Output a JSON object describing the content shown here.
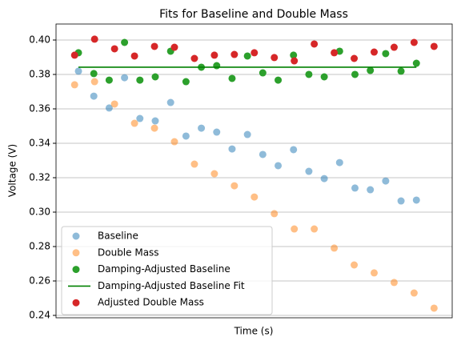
{
  "chart_data": {
    "type": "scatter",
    "title": "Fits for Baseline and Double Mass",
    "xlabel": "Time (s)",
    "ylabel": "Voltage (V)",
    "xlim": [
      -1.46,
      24.33
    ],
    "ylim": [
      0.2386,
      0.4093
    ],
    "yticks": [
      0.24,
      0.26,
      0.28,
      {
        "value": 0.3,
        "label": "0.30"
      },
      0.32,
      0.34,
      0.36,
      0.38,
      {
        "value": 0.4,
        "label": "0.40"
      }
    ],
    "grid": "y",
    "legend": "lower left",
    "series": [
      {
        "name": "Baseline",
        "kind": "scatter",
        "color": "#1f77b4",
        "alpha": 0.5,
        "x": [
          0,
          1,
          2,
          3,
          4,
          5,
          6,
          7,
          8,
          9,
          10,
          11,
          12,
          13,
          14,
          15,
          16,
          17,
          18,
          19,
          20,
          21,
          22
        ],
        "values": [
          0.3819,
          0.3674,
          0.3605,
          0.3781,
          0.3544,
          0.353,
          0.3637,
          0.3442,
          0.3488,
          0.3465,
          0.3367,
          0.3451,
          0.3335,
          0.327,
          0.3363,
          0.3237,
          0.3195,
          0.3288,
          0.314,
          0.313,
          0.3181,
          0.3065,
          0.307
        ]
      },
      {
        "name": "Double Mass",
        "kind": "scatter",
        "color": "#ff7f0e",
        "alpha": 0.5,
        "x": [
          -0.25,
          1.05,
          2.35,
          3.65,
          4.95,
          6.25,
          7.55,
          8.85,
          10.15,
          11.45,
          12.75,
          14.05,
          15.35,
          16.65,
          17.95,
          19.25,
          20.55,
          21.85,
          23.15
        ],
        "values": [
          0.374,
          0.3758,
          0.3628,
          0.3516,
          0.3488,
          0.3409,
          0.3279,
          0.3223,
          0.3153,
          0.3088,
          0.2991,
          0.2902,
          0.2902,
          0.2791,
          0.2693,
          0.2647,
          0.2591,
          0.253,
          0.2442
        ]
      },
      {
        "name": "Damping-Adjusted Baseline",
        "kind": "scatter",
        "color": "#2ca02c",
        "alpha": 1,
        "x": [
          0,
          1,
          2,
          3,
          4,
          5,
          6,
          7,
          8,
          9,
          10,
          11,
          12,
          13,
          14,
          15,
          16,
          17,
          18,
          19,
          20,
          21,
          22
        ],
        "values": [
          0.3926,
          0.3805,
          0.3767,
          0.3986,
          0.3767,
          0.3786,
          0.3935,
          0.3758,
          0.3842,
          0.3851,
          0.3777,
          0.3907,
          0.3809,
          0.3767,
          0.3912,
          0.38,
          0.3786,
          0.3935,
          0.38,
          0.3823,
          0.3921,
          0.3819,
          0.3865
        ]
      },
      {
        "name": "Damping-Adjusted Baseline Fit",
        "kind": "line",
        "color": "#008000",
        "x": [
          0,
          22
        ],
        "values": [
          0.3842,
          0.3842
        ]
      },
      {
        "name": "Adjusted Double Mass",
        "kind": "scatter",
        "color": "#d62728",
        "alpha": 1,
        "x": [
          -0.25,
          1.05,
          2.35,
          3.65,
          4.95,
          6.25,
          7.55,
          8.85,
          10.15,
          11.45,
          12.75,
          14.05,
          15.35,
          16.65,
          17.95,
          19.25,
          20.55,
          21.85,
          23.15
        ],
        "values": [
          0.3912,
          0.4005,
          0.3949,
          0.3907,
          0.3963,
          0.3958,
          0.3893,
          0.3912,
          0.3916,
          0.3926,
          0.3898,
          0.3879,
          0.3977,
          0.3926,
          0.3893,
          0.393,
          0.3958,
          0.3986,
          0.3963
        ]
      }
    ]
  }
}
